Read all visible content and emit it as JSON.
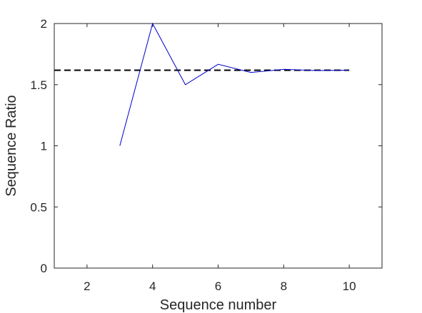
{
  "chart_data": {
    "type": "line",
    "title": "",
    "xlabel": "Sequence number",
    "ylabel": "Sequence Ratio",
    "xlim": [
      1,
      11
    ],
    "ylim": [
      0,
      2
    ],
    "xticks": [
      2,
      4,
      6,
      8,
      10
    ],
    "yticks": [
      0,
      0.5,
      1,
      1.5,
      2
    ],
    "xtick_labels": [
      "2",
      "4",
      "6",
      "8",
      "10"
    ],
    "ytick_labels": [
      "0",
      "0.5",
      "1",
      "1.5",
      "2"
    ],
    "grid": false,
    "series": [
      {
        "style": "solid",
        "color": "#0000cc",
        "x": [
          3,
          4,
          5,
          6,
          7,
          8,
          9,
          10
        ],
        "y": [
          1,
          2,
          1.5,
          1.6667,
          1.6,
          1.625,
          1.6154,
          1.619
        ]
      }
    ],
    "reference_lines": [
      {
        "style": "dashed",
        "color": "#000000",
        "x": [
          1,
          10
        ],
        "y": 1.618
      }
    ]
  }
}
